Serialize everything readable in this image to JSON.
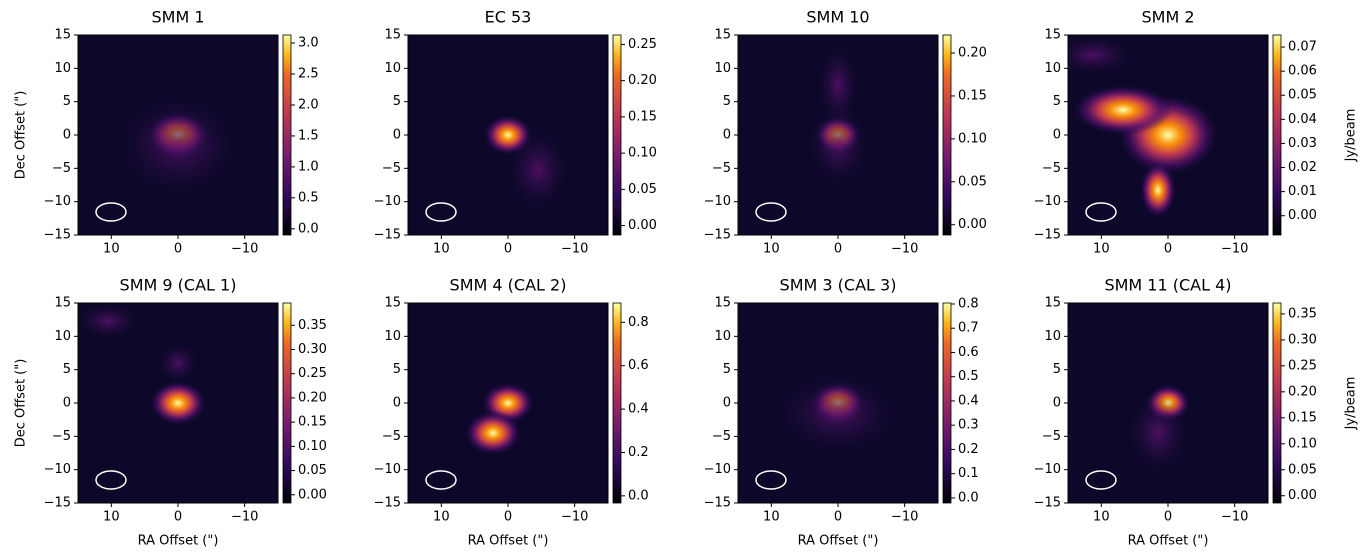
{
  "chart_data": [
    {
      "type": "heatmap",
      "title": "SMM 1",
      "ylabel": "Dec Offset (\")",
      "xlim": [
        15,
        -15
      ],
      "ylim": [
        -15,
        15
      ],
      "xticks": [
        10,
        0,
        {
          "value": -10,
          "label": "−10"
        }
      ],
      "yticks": [
        {
          "value": -15,
          "label": "−15"
        },
        {
          "value": -10,
          "label": "−10"
        },
        {
          "value": -5,
          "label": "−5"
        },
        0,
        5,
        10,
        15
      ],
      "clim": [
        -0.1,
        3.13
      ],
      "cticks": [
        {
          "value": 0,
          "label": "0.0"
        },
        0.5,
        {
          "value": 1,
          "label": "1.0"
        },
        1.5,
        {
          "value": 2,
          "label": "2.0"
        },
        2.5,
        {
          "value": 3,
          "label": "3.0"
        }
      ]
    },
    {
      "type": "heatmap",
      "title": "EC 53",
      "xlim": [
        15,
        -15
      ],
      "ylim": [
        -15,
        15
      ],
      "xticks": [
        10,
        0,
        {
          "value": -10,
          "label": "−10"
        }
      ],
      "yticks": [
        {
          "value": -15,
          "label": "−15"
        },
        {
          "value": -10,
          "label": "−10"
        },
        {
          "value": -5,
          "label": "−5"
        },
        0,
        5,
        10,
        15
      ],
      "clim": [
        -0.013,
        0.263
      ],
      "cticks": [
        {
          "value": 0,
          "label": "0.00"
        },
        0.05,
        {
          "value": 0.1,
          "label": "0.10"
        },
        0.15,
        {
          "value": 0.2,
          "label": "0.20"
        },
        0.25
      ]
    },
    {
      "type": "heatmap",
      "title": "SMM 10",
      "xlim": [
        15,
        -15
      ],
      "ylim": [
        -15,
        15
      ],
      "xticks": [
        10,
        0,
        {
          "value": -10,
          "label": "−10"
        }
      ],
      "yticks": [
        {
          "value": -15,
          "label": "−15"
        },
        {
          "value": -10,
          "label": "−10"
        },
        {
          "value": -5,
          "label": "−5"
        },
        0,
        5,
        10,
        15
      ],
      "clim": [
        -0.012,
        0.221
      ],
      "cticks": [
        {
          "value": 0,
          "label": "0.00"
        },
        0.05,
        {
          "value": 0.1,
          "label": "0.10"
        },
        0.15,
        {
          "value": 0.2,
          "label": "0.20"
        }
      ]
    },
    {
      "type": "heatmap",
      "title": "SMM 2",
      "clabel": "Jy/beam",
      "xlim": [
        15,
        -15
      ],
      "ylim": [
        -15,
        15
      ],
      "xticks": [
        10,
        0,
        {
          "value": -10,
          "label": "−10"
        }
      ],
      "yticks": [
        {
          "value": -15,
          "label": "−15"
        },
        {
          "value": -10,
          "label": "−10"
        },
        {
          "value": -5,
          "label": "−5"
        },
        0,
        5,
        10,
        15
      ],
      "clim": [
        -0.008,
        0.075
      ],
      "cticks": [
        {
          "value": 0,
          "label": "0.00"
        },
        0.01,
        0.02,
        0.03,
        0.04,
        0.05,
        0.06,
        0.07
      ]
    },
    {
      "type": "heatmap",
      "title": "SMM 9 (CAL 1)",
      "xlabel": "RA Offset (\")",
      "ylabel": "Dec Offset (\")",
      "xlim": [
        15,
        -15
      ],
      "ylim": [
        -15,
        15
      ],
      "xticks": [
        10,
        0,
        {
          "value": -10,
          "label": "−10"
        }
      ],
      "yticks": [
        {
          "value": -15,
          "label": "−15"
        },
        {
          "value": -10,
          "label": "−10"
        },
        {
          "value": -5,
          "label": "−5"
        },
        0,
        5,
        10,
        15
      ],
      "clim": [
        -0.017,
        0.396
      ],
      "cticks": [
        {
          "value": 0,
          "label": "0.00"
        },
        0.05,
        {
          "value": 0.1,
          "label": "0.10"
        },
        0.15,
        {
          "value": 0.2,
          "label": "0.20"
        },
        0.25,
        {
          "value": 0.3,
          "label": "0.30"
        },
        0.35
      ]
    },
    {
      "type": "heatmap",
      "title": "SMM 4 (CAL 2)",
      "xlabel": "RA Offset (\")",
      "xlim": [
        15,
        -15
      ],
      "ylim": [
        -15,
        15
      ],
      "xticks": [
        10,
        0,
        {
          "value": -10,
          "label": "−10"
        }
      ],
      "yticks": [
        {
          "value": -15,
          "label": "−15"
        },
        {
          "value": -10,
          "label": "−10"
        },
        {
          "value": -5,
          "label": "−5"
        },
        0,
        5,
        10,
        15
      ],
      "clim": [
        -0.033,
        0.889
      ],
      "cticks": [
        {
          "value": 0,
          "label": "0.0"
        },
        0.2,
        0.4,
        0.6,
        0.8
      ]
    },
    {
      "type": "heatmap",
      "title": "SMM 3 (CAL 3)",
      "xlabel": "RA Offset (\")",
      "xlim": [
        15,
        -15
      ],
      "ylim": [
        -15,
        15
      ],
      "xticks": [
        10,
        0,
        {
          "value": -10,
          "label": "−10"
        }
      ],
      "yticks": [
        {
          "value": -15,
          "label": "−15"
        },
        {
          "value": -10,
          "label": "−10"
        },
        {
          "value": -5,
          "label": "−5"
        },
        0,
        5,
        10,
        15
      ],
      "clim": [
        -0.021,
        0.804
      ],
      "cticks": [
        {
          "value": 0,
          "label": "0.0"
        },
        0.1,
        0.2,
        0.3,
        0.4,
        0.5,
        0.6,
        0.7,
        0.8
      ]
    },
    {
      "type": "heatmap",
      "title": "SMM 11 (CAL 4)",
      "xlabel": "RA Offset (\")",
      "clabel": "Jy/beam",
      "xlim": [
        15,
        -15
      ],
      "ylim": [
        -15,
        15
      ],
      "xticks": [
        10,
        0,
        {
          "value": -10,
          "label": "−10"
        }
      ],
      "yticks": [
        {
          "value": -15,
          "label": "−15"
        },
        {
          "value": -10,
          "label": "−10"
        },
        {
          "value": -5,
          "label": "−5"
        },
        0,
        5,
        10,
        15
      ],
      "clim": [
        -0.014,
        0.371
      ],
      "cticks": [
        {
          "value": 0,
          "label": "0.00"
        },
        0.05,
        {
          "value": 0.1,
          "label": "0.10"
        },
        0.15,
        {
          "value": 0.2,
          "label": "0.20"
        },
        0.25,
        {
          "value": 0.3,
          "label": "0.30"
        },
        0.35
      ]
    }
  ]
}
